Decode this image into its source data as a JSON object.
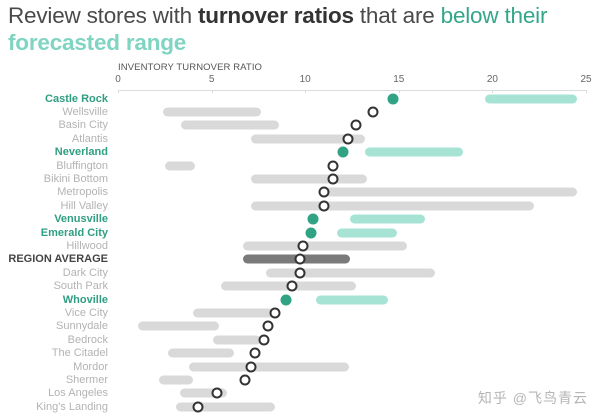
{
  "title": {
    "part1": "Review stores with ",
    "part2": "turnover ratios",
    "part3": " that are ",
    "part4": "below their",
    "part5": "forecasted range"
  },
  "watermark": "知乎 @飞鸟青云",
  "colors": {
    "highlight_dot": "#2fa383",
    "highlight_range": "#a6e3d4",
    "normal_range": "#d9d9d9",
    "average_range": "#7a7a7a",
    "highlight_text": "#2f9e82"
  },
  "chart_data": {
    "type": "dot-range",
    "title": "Review stores with turnover ratios that are below their forecasted range",
    "xlabel": "INVENTORY TURNOVER RATIO",
    "ylabel": "",
    "xlim": [
      0,
      25
    ],
    "xticks": [
      0,
      5,
      10,
      15,
      20,
      25
    ],
    "grid": false,
    "legend": null,
    "categories": [
      "Castle Rock",
      "Wellsville",
      "Basin City",
      "Atlantis",
      "Neverland",
      "Bluffington",
      "Bikini Bottom",
      "Metropolis",
      "Hill Valley",
      "Venusville",
      "Emerald City",
      "Hillwood",
      "REGION AVERAGE",
      "Dark City",
      "South Park",
      "Whoville",
      "Vice City",
      "Sunnydale",
      "Bedrock",
      "The Citadel",
      "Mordor",
      "Shermer",
      "Los Angeles",
      "King's Landing"
    ],
    "series": [
      {
        "name": "Actual turnover ratio",
        "values": [
          14.7,
          13.6,
          12.7,
          12.3,
          12.0,
          11.5,
          11.5,
          11.0,
          11.0,
          10.4,
          10.3,
          9.9,
          9.7,
          9.7,
          9.3,
          9.0,
          8.4,
          8.0,
          7.8,
          7.3,
          7.1,
          6.8,
          5.3,
          4.3
        ]
      },
      {
        "name": "Forecast range low",
        "values": [
          19.8,
          2.6,
          3.6,
          7.3,
          13.4,
          2.7,
          7.3,
          11.0,
          7.3,
          12.6,
          11.9,
          6.9,
          6.9,
          8.1,
          5.7,
          10.8,
          4.2,
          1.3,
          5.3,
          2.9,
          4.0,
          2.4,
          3.5,
          3.3
        ]
      },
      {
        "name": "Forecast range high",
        "values": [
          24.3,
          7.4,
          8.4,
          13.0,
          18.2,
          3.9,
          13.1,
          24.3,
          22.0,
          16.2,
          14.7,
          15.2,
          12.2,
          16.7,
          12.5,
          14.2,
          8.4,
          5.2,
          7.4,
          6.0,
          12.1,
          3.8,
          5.6,
          8.2
        ]
      }
    ],
    "highlighted": [
      "Castle Rock",
      "Neverland",
      "Venusville",
      "Emerald City",
      "Whoville"
    ],
    "average_row": "REGION AVERAGE"
  }
}
